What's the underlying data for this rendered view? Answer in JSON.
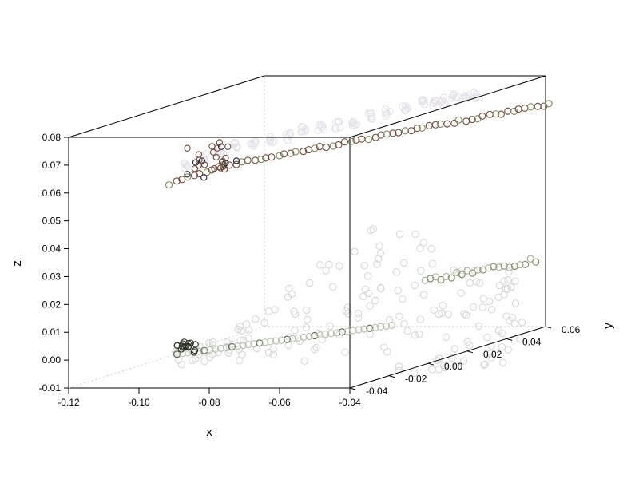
{
  "chart_data": {
    "type": "scatter",
    "title": "",
    "xlabel": "x",
    "ylabel": "y",
    "zlabel": "z",
    "xlim": [
      -0.12,
      -0.04
    ],
    "ylim": [
      -0.04,
      0.06
    ],
    "zlim": [
      -0.01,
      0.08
    ],
    "x_ticks": [
      "-0.12",
      "-0.10",
      "-0.08",
      "-0.06",
      "-0.04"
    ],
    "y_ticks": [
      "-0.04",
      "-0.02",
      "0.00",
      "0.02",
      "0.04",
      "0.06"
    ],
    "z_ticks": [
      "-0.01",
      "0.00",
      "0.01",
      "0.02",
      "0.03",
      "0.04",
      "0.05",
      "0.06",
      "0.07",
      "0.08"
    ],
    "grid": false,
    "legend": "none",
    "marker": "open circle",
    "colors": {
      "dark_brown": "#6b4a3a",
      "olive": "#7b8a5a",
      "light_gray": "#d8d8d8",
      "pale_lavender": "#e6e2ea"
    },
    "series": [
      {
        "description_upper_band": "",
        "x": [
          -0.092,
          -0.09,
          -0.088,
          -0.086,
          -0.084,
          -0.082,
          -0.08,
          -0.078,
          -0.076,
          -0.074,
          -0.072,
          -0.07,
          -0.068,
          -0.066,
          -0.064,
          -0.062,
          -0.06,
          -0.058,
          -0.056,
          -0.054
        ],
        "y": [
          -0.03,
          -0.025,
          -0.02,
          -0.015,
          -0.01,
          -0.005,
          0.0,
          0.005,
          0.01,
          0.015,
          0.02,
          0.025,
          0.03,
          0.035,
          0.04,
          0.042,
          0.044,
          0.046,
          0.048,
          0.05
        ],
        "z": [
          0.062,
          0.064,
          0.065,
          0.066,
          0.066,
          0.066,
          0.066,
          0.067,
          0.067,
          0.067,
          0.067,
          0.068,
          0.068,
          0.068,
          0.069,
          0.069,
          0.069,
          0.07,
          0.07,
          0.07
        ]
      },
      {
        "description_lower_band": "",
        "x": [
          -0.092,
          -0.088,
          -0.084,
          -0.08,
          -0.076,
          -0.072,
          -0.068,
          -0.064,
          -0.06,
          -0.056,
          -0.052,
          -0.048,
          -0.046,
          -0.044
        ],
        "y": [
          -0.035,
          -0.03,
          -0.02,
          -0.01,
          0.0,
          0.01,
          0.02,
          0.025,
          0.03,
          0.035,
          0.04,
          0.045,
          0.05,
          0.055
        ],
        "z": [
          0.002,
          0.004,
          0.008,
          0.013,
          0.02,
          0.027,
          0.034,
          0.038,
          0.03,
          0.022,
          0.016,
          0.012,
          0.012,
          0.013
        ]
      }
    ]
  }
}
